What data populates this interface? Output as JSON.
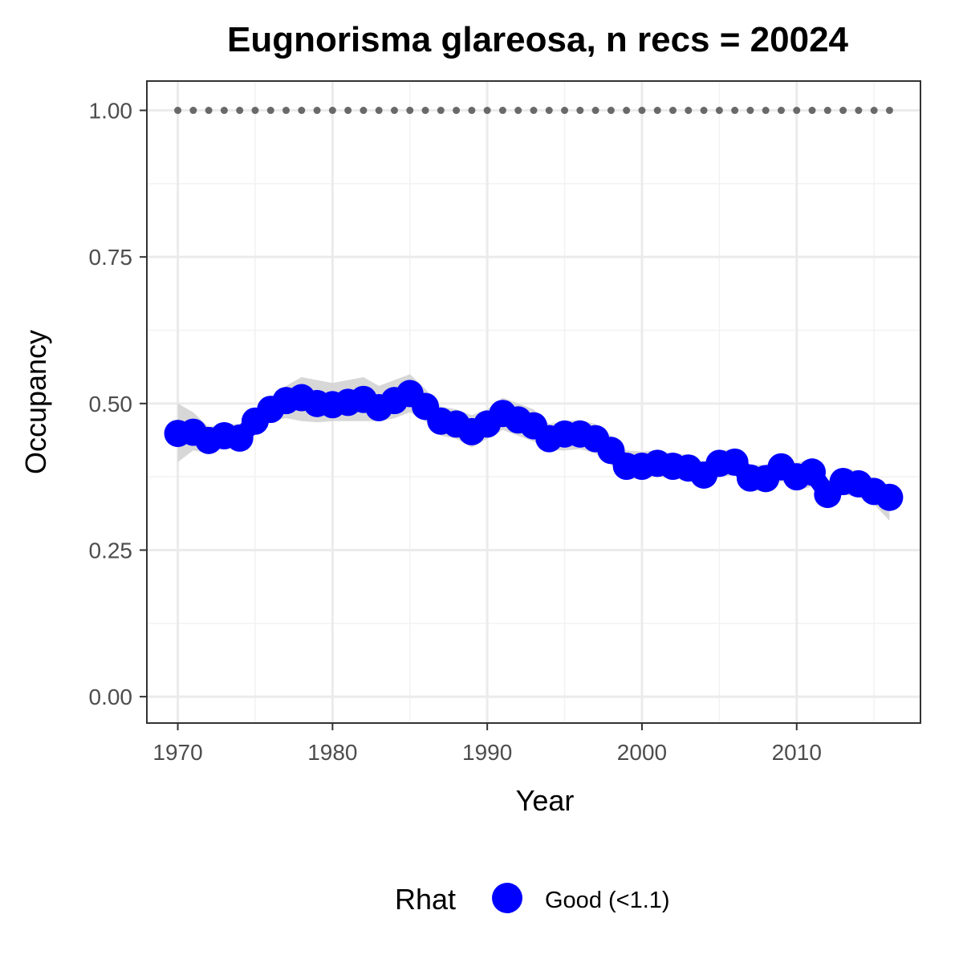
{
  "chart_data": {
    "type": "line",
    "title": "Eugnorisma glareosa, n recs = 20024",
    "xlabel": "Year",
    "ylabel": "Occupancy",
    "xlim": [
      1968,
      2018
    ],
    "ylim": [
      -0.045,
      1.05
    ],
    "x_ticks": [
      1970,
      1980,
      1990,
      2000,
      2010
    ],
    "x_tick_labels": [
      "1970",
      "1980",
      "1990",
      "2000",
      "2010"
    ],
    "y_ticks": [
      0,
      0.25,
      0.5,
      0.75,
      1.0
    ],
    "y_tick_labels": [
      "0.00",
      "0.25",
      "0.50",
      "0.75",
      "1.00"
    ],
    "grid": true,
    "legend": {
      "title": "Rhat",
      "position": "bottom",
      "entries": [
        {
          "label": "Good (<1.1)",
          "color": "#0000FF"
        }
      ]
    },
    "colors": {
      "series": "#0000FF",
      "ribbon": "#D3D3D3",
      "reference": "#696969"
    },
    "x": [
      1970,
      1971,
      1972,
      1973,
      1974,
      1975,
      1976,
      1977,
      1978,
      1979,
      1980,
      1981,
      1982,
      1983,
      1984,
      1985,
      1986,
      1987,
      1988,
      1989,
      1990,
      1991,
      1992,
      1993,
      1994,
      1995,
      1996,
      1997,
      1998,
      1999,
      2000,
      2001,
      2002,
      2003,
      2004,
      2005,
      2006,
      2007,
      2008,
      2009,
      2010,
      2011,
      2012,
      2013,
      2014,
      2015,
      2016
    ],
    "series": [
      {
        "values": [
          0.449,
          0.451,
          0.437,
          0.445,
          0.441,
          0.47,
          0.49,
          0.505,
          0.51,
          0.5,
          0.498,
          0.502,
          0.507,
          0.493,
          0.505,
          0.517,
          0.495,
          0.47,
          0.465,
          0.452,
          0.465,
          0.483,
          0.472,
          0.462,
          0.44,
          0.448,
          0.448,
          0.44,
          0.42,
          0.393,
          0.393,
          0.398,
          0.393,
          0.39,
          0.378,
          0.398,
          0.4,
          0.373,
          0.372,
          0.392,
          0.375,
          0.383,
          0.345,
          0.367,
          0.363,
          0.35,
          0.34
        ],
        "lower": [
          0.4,
          0.42,
          0.415,
          0.425,
          0.422,
          0.45,
          0.47,
          0.475,
          0.47,
          0.468,
          0.47,
          0.47,
          0.47,
          0.47,
          0.475,
          0.485,
          0.47,
          0.445,
          0.44,
          0.425,
          0.44,
          0.455,
          0.445,
          0.435,
          0.42,
          0.42,
          0.422,
          0.415,
          0.395,
          0.37,
          0.372,
          0.375,
          0.372,
          0.37,
          0.358,
          0.375,
          0.378,
          0.352,
          0.35,
          0.368,
          0.352,
          0.358,
          0.325,
          0.345,
          0.34,
          0.328,
          0.3
        ],
        "upper": [
          0.5,
          0.485,
          0.46,
          0.465,
          0.465,
          0.49,
          0.51,
          0.53,
          0.545,
          0.54,
          0.535,
          0.54,
          0.545,
          0.53,
          0.54,
          0.55,
          0.525,
          0.495,
          0.49,
          0.48,
          0.49,
          0.51,
          0.5,
          0.49,
          0.465,
          0.47,
          0.472,
          0.465,
          0.445,
          0.42,
          0.418,
          0.42,
          0.415,
          0.413,
          0.4,
          0.42,
          0.422,
          0.395,
          0.395,
          0.415,
          0.398,
          0.408,
          0.368,
          0.39,
          0.385,
          0.373,
          0.36
        ]
      },
      {
        "values": [
          1,
          1,
          1,
          1,
          1,
          1,
          1,
          1,
          1,
          1,
          1,
          1,
          1,
          1,
          1,
          1,
          1,
          1,
          1,
          1,
          1,
          1,
          1,
          1,
          1,
          1,
          1,
          1,
          1,
          1,
          1,
          1,
          1,
          1,
          1,
          1,
          1,
          1,
          1,
          1,
          1,
          1,
          1,
          1,
          1,
          1,
          1
        ]
      }
    ]
  }
}
